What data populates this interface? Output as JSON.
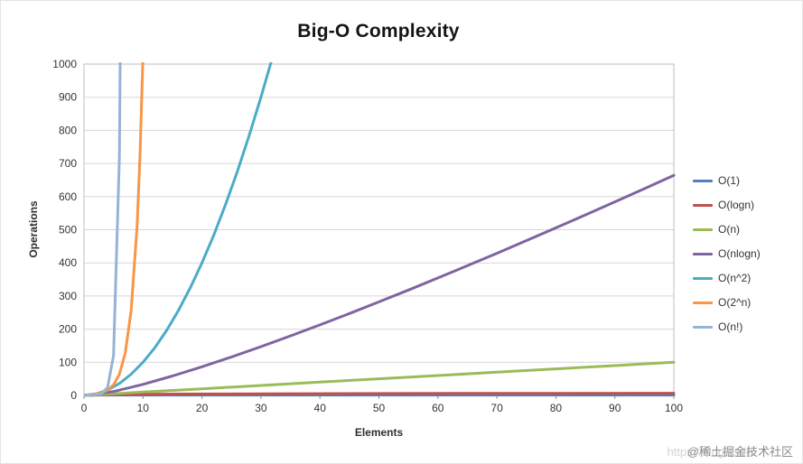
{
  "chart_data": {
    "type": "line",
    "title": "Big-O Complexity",
    "xlabel": "Elements",
    "ylabel": "Operations",
    "xlim": [
      0,
      100
    ],
    "ylim": [
      0,
      1000
    ],
    "xtick_step": 10,
    "ytick_step": 100,
    "grid": "horizontal",
    "legend_position": "right",
    "series": [
      {
        "name": "O(1)",
        "color": "#4F81BD",
        "points": [
          [
            0,
            1
          ],
          [
            100,
            1
          ]
        ]
      },
      {
        "name": "O(logn)",
        "color": "#C0504D",
        "points": [
          [
            1,
            0
          ],
          [
            2,
            1
          ],
          [
            4,
            2
          ],
          [
            8,
            3
          ],
          [
            16,
            4
          ],
          [
            32,
            5
          ],
          [
            64,
            6
          ],
          [
            100,
            6.64
          ]
        ]
      },
      {
        "name": "O(n)",
        "color": "#9BBB59",
        "points": [
          [
            0,
            0
          ],
          [
            10,
            10
          ],
          [
            20,
            20
          ],
          [
            30,
            30
          ],
          [
            40,
            40
          ],
          [
            50,
            50
          ],
          [
            60,
            60
          ],
          [
            70,
            70
          ],
          [
            80,
            80
          ],
          [
            90,
            90
          ],
          [
            100,
            100
          ]
        ]
      },
      {
        "name": "O(nlogn)",
        "color": "#8064A2",
        "points": [
          [
            0,
            0
          ],
          [
            5,
            11.6
          ],
          [
            10,
            33.2
          ],
          [
            15,
            58.6
          ],
          [
            20,
            86.4
          ],
          [
            25,
            116.1
          ],
          [
            30,
            147.2
          ],
          [
            35,
            179.5
          ],
          [
            40,
            212.9
          ],
          [
            45,
            247.1
          ],
          [
            50,
            282.2
          ],
          [
            55,
            318.0
          ],
          [
            60,
            354.4
          ],
          [
            65,
            391.5
          ],
          [
            70,
            429.0
          ],
          [
            75,
            467.2
          ],
          [
            80,
            505.8
          ],
          [
            85,
            544.8
          ],
          [
            90,
            584.3
          ],
          [
            95,
            624.1
          ],
          [
            100,
            664.4
          ]
        ]
      },
      {
        "name": "O(n^2)",
        "color": "#4BACC6",
        "points": [
          [
            0,
            0
          ],
          [
            2,
            4
          ],
          [
            4,
            16
          ],
          [
            6,
            36
          ],
          [
            8,
            64
          ],
          [
            10,
            100
          ],
          [
            12,
            144
          ],
          [
            14,
            196
          ],
          [
            16,
            256
          ],
          [
            18,
            324
          ],
          [
            20,
            400
          ],
          [
            22,
            484
          ],
          [
            24,
            576
          ],
          [
            26,
            676
          ],
          [
            28,
            784
          ],
          [
            30,
            900
          ],
          [
            32,
            1024
          ]
        ]
      },
      {
        "name": "O(2^n)",
        "color": "#F79646",
        "points": [
          [
            0,
            1
          ],
          [
            1,
            2
          ],
          [
            2,
            4
          ],
          [
            3,
            8
          ],
          [
            4,
            16
          ],
          [
            5,
            32
          ],
          [
            6,
            64
          ],
          [
            7,
            128
          ],
          [
            8,
            256
          ],
          [
            9,
            512
          ],
          [
            9.5,
            724
          ],
          [
            10,
            1024
          ]
        ]
      },
      {
        "name": "O(n!)",
        "color": "#95B3D7",
        "points": [
          [
            0,
            1
          ],
          [
            1,
            1
          ],
          [
            2,
            2
          ],
          [
            3,
            6
          ],
          [
            4,
            24
          ],
          [
            5,
            120
          ],
          [
            6,
            720
          ],
          [
            6.5,
            1871
          ]
        ]
      }
    ]
  },
  "watermark": {
    "url": "https://blog.csdn",
    "community": "@稀土掘金技术社区"
  }
}
